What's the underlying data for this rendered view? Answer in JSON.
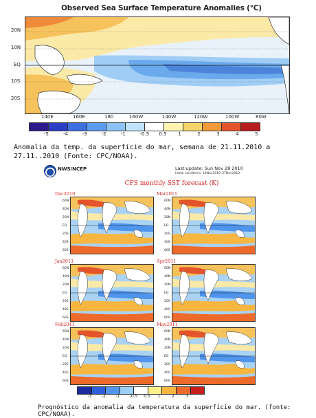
{
  "figure1": {
    "title": "Observed Sea Surface Temperature Anomalies (°C)",
    "lat_labels": [
      "20N",
      "10N",
      "EQ",
      "10S",
      "20S"
    ],
    "lon_labels": [
      "140E",
      "160E",
      "180",
      "160W",
      "140W",
      "120W",
      "100W",
      "80W"
    ],
    "colorbar_labels": [
      "-5",
      "-4",
      "-3",
      "-2",
      "-1",
      "-0.5",
      "0.5",
      "1",
      "2",
      "3",
      "4",
      "5"
    ],
    "colorbar_colors": [
      "#2a1a8c",
      "#2c3fc4",
      "#3c6fe0",
      "#5c9bf0",
      "#8cc3f6",
      "#c0e2fa",
      "#ffffff",
      "#fff4b0",
      "#f7d36b",
      "#f29a3c",
      "#e4542a",
      "#b81d1d"
    ],
    "caption": "Anomalia da temp. da superfície do mar, semana de 21.11.2010 a 27.11..2010 (Fonte: CPC/NOAA)."
  },
  "figure2": {
    "agency": "NWS/NCEP",
    "last_update": "Last update: Sun Nov 28 2010",
    "initial_conditions": "Initial conditions: 18Nov2010–27Nov2010",
    "title": "CFS monthly SST forecast (K)",
    "panels": [
      {
        "label": "Dec2010"
      },
      {
        "label": "Mar2011"
      },
      {
        "label": "Jan2011"
      },
      {
        "label": "Apr2011"
      },
      {
        "label": "Feb2011"
      },
      {
        "label": "May2011"
      }
    ],
    "lat_ticks": [
      "60N",
      "40N",
      "20N",
      "EQ",
      "20S",
      "40S",
      "60S"
    ],
    "colorbar_labels": [
      "-3",
      "-2",
      "-1",
      "-0.5",
      "0.5",
      "1",
      "2",
      "3"
    ],
    "colorbar_colors": [
      "#1b2a9e",
      "#2f5fd8",
      "#4f95ee",
      "#9cd0f7",
      "#ffffff",
      "#fff08a",
      "#f7b640",
      "#ee6a2a",
      "#c81e1e"
    ],
    "caption": "Prognóstico da anomalia da temperatura da superfície do mar. (fonte: CPC/NOAA)."
  }
}
